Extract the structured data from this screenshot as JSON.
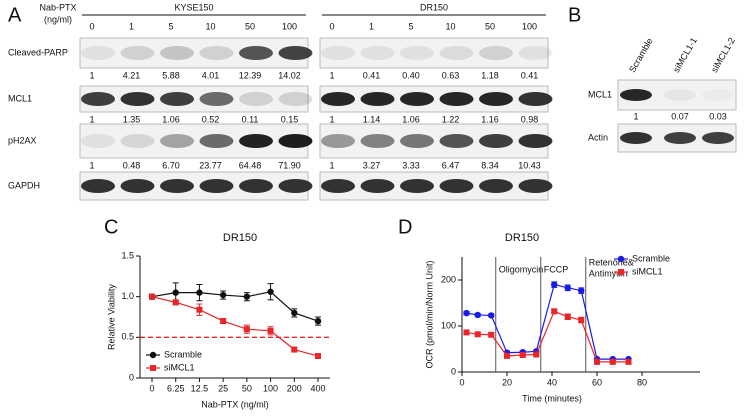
{
  "panel_labels": [
    "A",
    "B",
    "C",
    "D"
  ],
  "blot_a": {
    "treatment_label": [
      "Nab-PTX",
      "(ng/ml)"
    ],
    "proteins": [
      "Cleaved-PARP",
      "MCL1",
      "pH2AX",
      "GAPDH"
    ],
    "groups": [
      {
        "name": "KYSE150",
        "doses": [
          "0",
          "1",
          "5",
          "10",
          "50",
          "100"
        ],
        "quant": [
          [
            "1",
            "4.21",
            "5.88",
            "4.01",
            "12.39",
            "14.02"
          ],
          [
            "1",
            "1.35",
            "1.06",
            "0.52",
            "0.11",
            "0.15"
          ],
          [
            "1",
            "0.48",
            "6.70",
            "23.77",
            "64.48",
            "71.90"
          ]
        ]
      },
      {
        "name": "DR150",
        "doses": [
          "0",
          "1",
          "5",
          "10",
          "50",
          "100"
        ],
        "quant": [
          [
            "1",
            "0.41",
            "0.40",
            "0.63",
            "1.18",
            "0.41"
          ],
          [
            "1",
            "1.14",
            "1.06",
            "1.22",
            "1.16",
            "0.98"
          ],
          [
            "1",
            "3.27",
            "3.33",
            "6.47",
            "8.34",
            "10.43"
          ]
        ]
      }
    ]
  },
  "blot_b": {
    "samples": [
      "Scramble",
      "siMCL1-1",
      "siMCL1-2"
    ],
    "proteins": [
      "MCL1",
      "Actin"
    ],
    "quant": [
      "1",
      "0.07",
      "0.03"
    ]
  },
  "chart_data": [
    {
      "type": "line",
      "title": "DR150",
      "x_label": "Nab-PTX (ng/ml)",
      "y_label": "Relative Viability",
      "categories": [
        "0",
        "6.25",
        "12.5",
        "25",
        "50",
        "100",
        "200",
        "400"
      ],
      "ylim": [
        0,
        1.5
      ],
      "yticks": [
        0,
        0.5,
        {
          "value": 1,
          "label": "1.0"
        },
        1.5
      ],
      "reference_line": {
        "value": 0.5,
        "color": "#e8262a"
      },
      "legend": "lower left",
      "series": [
        {
          "name": "Scramble",
          "color": "#111111",
          "marker": "circle",
          "values": [
            1.0,
            1.05,
            1.05,
            1.02,
            1.0,
            1.06,
            0.8,
            0.7
          ],
          "errors": [
            0.03,
            0.12,
            0.1,
            0.05,
            0.05,
            0.1,
            0.05,
            0.05
          ]
        },
        {
          "name": "siMCL1",
          "color": "#e8262a",
          "marker": "square",
          "values": [
            1.0,
            0.93,
            0.84,
            0.7,
            0.6,
            0.58,
            0.35,
            0.27
          ],
          "errors": [
            0.03,
            0.03,
            0.07,
            0.03,
            0.05,
            0.05,
            0.02,
            0.02
          ]
        }
      ]
    },
    {
      "type": "line",
      "title": "DR150",
      "x_label": "Time (minutes)",
      "y_label": "OCR (pmol/min/Norm Unit)",
      "x": [
        2,
        7,
        13,
        20,
        27,
        33,
        41,
        47,
        53,
        60,
        67,
        74
      ],
      "xlim": [
        0,
        80
      ],
      "xticks": [
        0,
        20,
        40,
        60,
        80
      ],
      "ylim": [
        0,
        250
      ],
      "yticks": [
        0,
        100,
        200
      ],
      "injections": [
        {
          "x": 15,
          "label": [
            "Oligomycin"
          ]
        },
        {
          "x": 35,
          "label": [
            "FCCP"
          ]
        },
        {
          "x": 55,
          "label": [
            "Retenone&",
            "Antimycin"
          ]
        }
      ],
      "legend": "upper right",
      "series": [
        {
          "name": "Scramble",
          "color": "#1a1ae6",
          "marker": "circle",
          "values": [
            128,
            124,
            123,
            42,
            43,
            45,
            190,
            183,
            177,
            28,
            28,
            28
          ],
          "errors": [
            4,
            3,
            3,
            3,
            3,
            3,
            6,
            6,
            6,
            2,
            2,
            2
          ]
        },
        {
          "name": "siMCL1",
          "color": "#e8262a",
          "marker": "square",
          "values": [
            86,
            82,
            81,
            35,
            37,
            38,
            132,
            120,
            113,
            22,
            22,
            22
          ],
          "errors": [
            3,
            3,
            3,
            2,
            2,
            2,
            5,
            6,
            6,
            2,
            2,
            2
          ]
        }
      ]
    }
  ]
}
